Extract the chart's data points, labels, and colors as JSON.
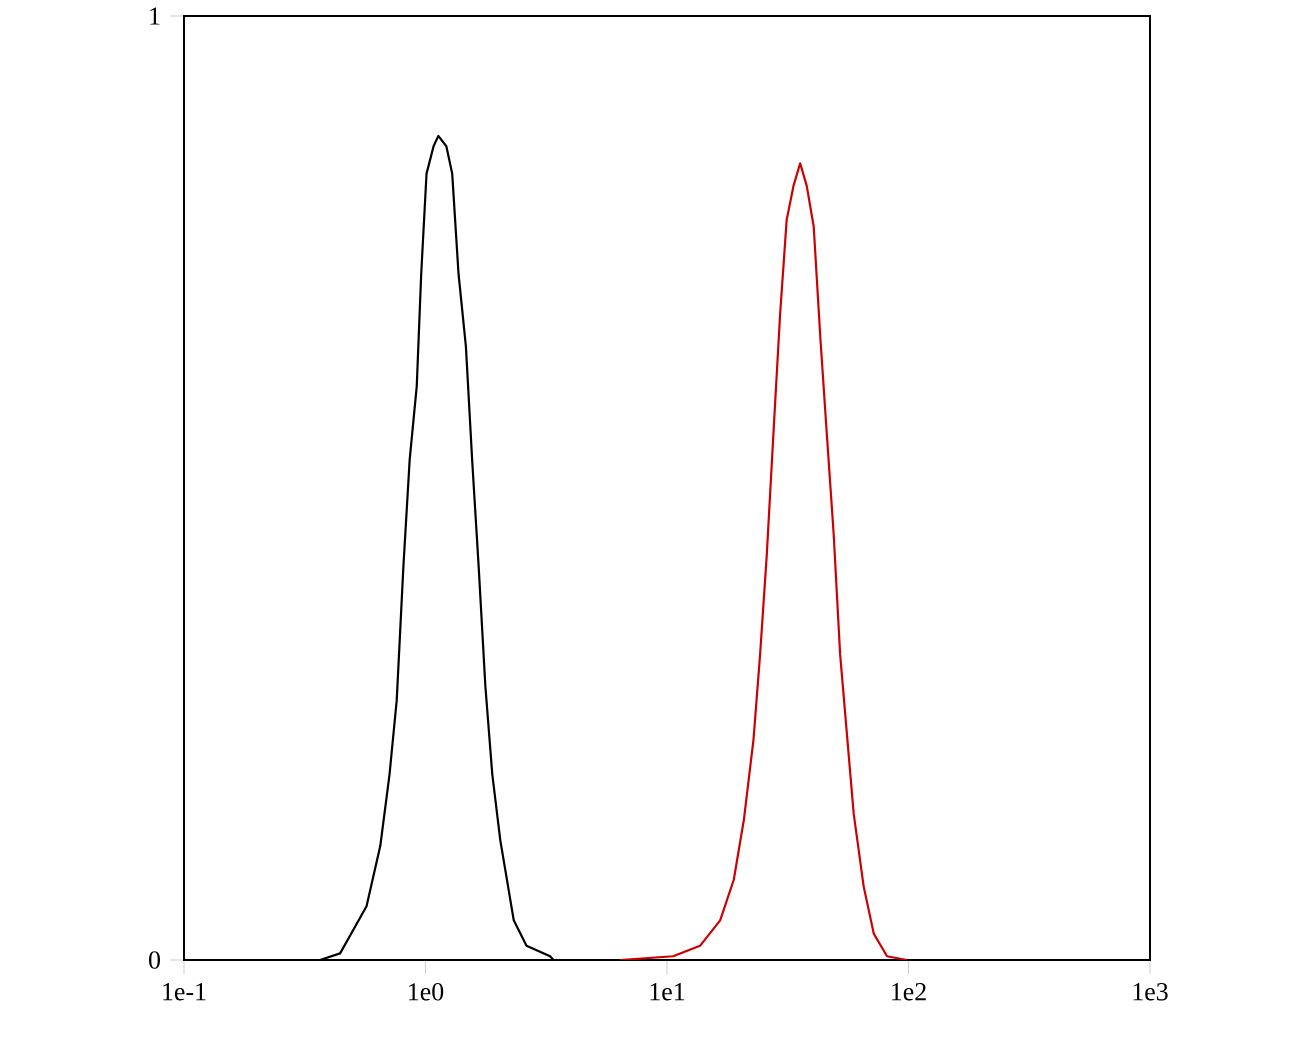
{
  "chart_data": {
    "type": "line",
    "log": "x",
    "xlim": [
      0.1,
      1000
    ],
    "ylim": [
      0,
      1
    ],
    "xticks": [
      {
        "value": 0.1,
        "label": "1e-1"
      },
      {
        "value": 1,
        "label": "1e0"
      },
      {
        "value": 10,
        "label": "1e1"
      },
      {
        "value": 100,
        "label": "1e2"
      },
      {
        "value": 1000,
        "label": "1e3"
      }
    ],
    "yticks": [
      0,
      1
    ],
    "series": [
      {
        "color": "#000000",
        "x": [
          0.366,
          0.443,
          0.57,
          0.65,
          0.71,
          0.76,
          0.81,
          0.86,
          0.92,
          0.96,
          1.01,
          1.08,
          1.13,
          1.22,
          1.29,
          1.37,
          1.47,
          1.56,
          1.66,
          1.77,
          1.89,
          2.04,
          2.32,
          2.62,
          3.28,
          3.39
        ],
        "values": [
          0,
          0.007,
          0.057,
          0.121,
          0.197,
          0.275,
          0.417,
          0.53,
          0.608,
          0.727,
          0.833,
          0.862,
          0.873,
          0.862,
          0.833,
          0.727,
          0.65,
          0.53,
          0.417,
          0.29,
          0.197,
          0.127,
          0.042,
          0.015,
          0.004,
          0
        ]
      },
      {
        "color": "#cc0000",
        "x": [
          6.4,
          10.6,
          13.7,
          16.6,
          18.9,
          20.8,
          22.8,
          24.3,
          25.9,
          27.7,
          29.4,
          31.3,
          33.4,
          35.6,
          37.9,
          40.5,
          43.2,
          45.9,
          49.0,
          52.1,
          55.6,
          59.3,
          65.2,
          71.8,
          81.5,
          98.4
        ],
        "values": [
          0,
          0.004,
          0.015,
          0.042,
          0.085,
          0.148,
          0.233,
          0.324,
          0.43,
          0.566,
          0.684,
          0.784,
          0.82,
          0.844,
          0.82,
          0.777,
          0.657,
          0.557,
          0.451,
          0.324,
          0.239,
          0.155,
          0.078,
          0.028,
          0.004,
          0
        ]
      }
    ]
  }
}
